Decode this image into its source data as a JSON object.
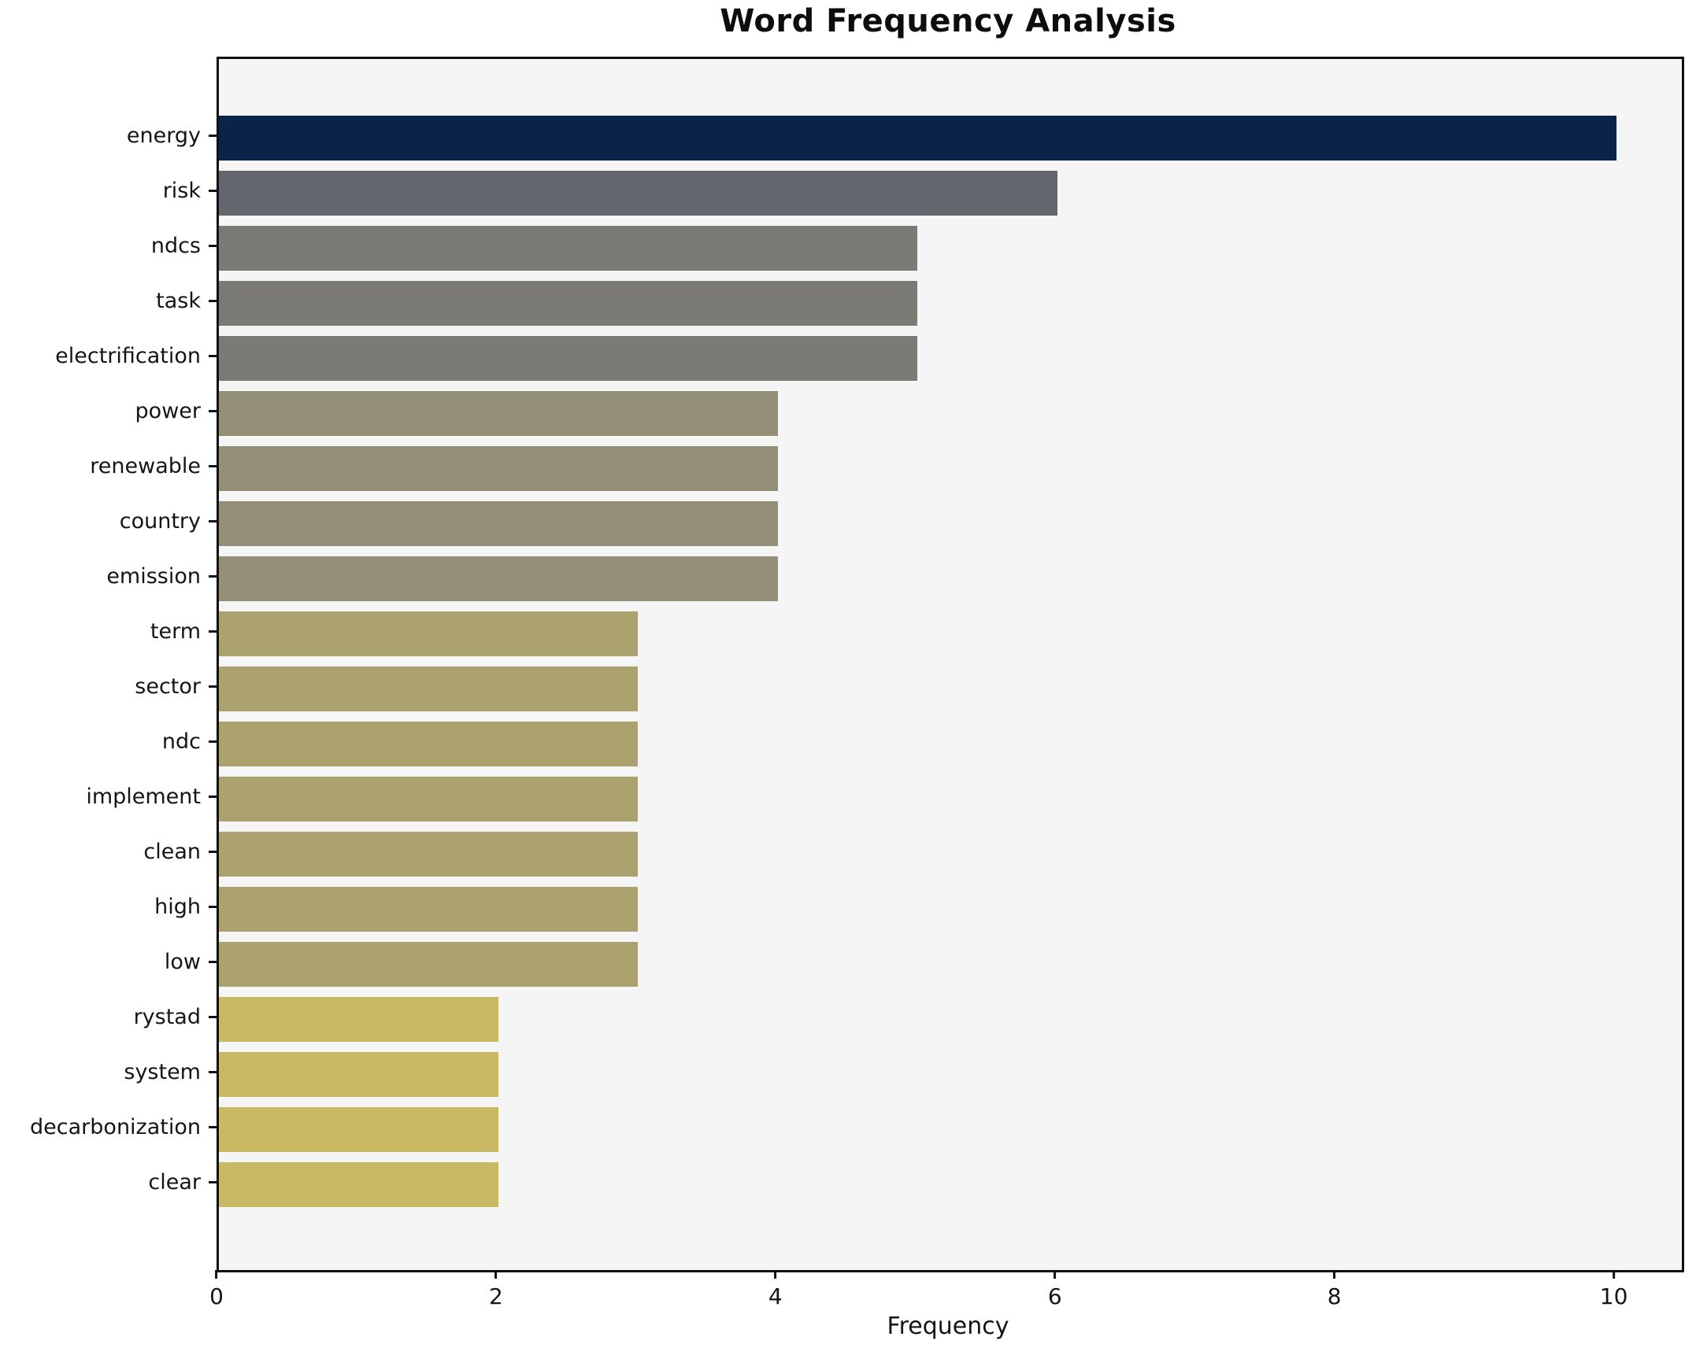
{
  "chart_data": {
    "type": "bar",
    "orientation": "horizontal",
    "title": "Word Frequency Analysis",
    "xlabel": "Frequency",
    "ylabel": "",
    "grid": false,
    "legend": "none",
    "plot_background": "#f5f5f6",
    "colormap_hint": "cividis (color mapped to frequency)",
    "xlim": [
      0,
      10.47
    ],
    "x_ticks": [
      0,
      2,
      4,
      6,
      8,
      10
    ],
    "categories": [
      "energy",
      "risk",
      "ndcs",
      "task",
      "electrification",
      "power",
      "renewable",
      "country",
      "emission",
      "term",
      "sector",
      "ndc",
      "implement",
      "clean",
      "high",
      "low",
      "rystad",
      "system",
      "decarbonization",
      "clear"
    ],
    "values": [
      10,
      6,
      5,
      5,
      5,
      4,
      4,
      4,
      4,
      3,
      3,
      3,
      3,
      3,
      3,
      3,
      2,
      2,
      2,
      2
    ],
    "bar_colors": [
      "#0a2449",
      "#64666d",
      "#7b7a74",
      "#7b7a74",
      "#7b7a74",
      "#949078",
      "#949078",
      "#949078",
      "#949078",
      "#aca26f",
      "#aca26f",
      "#aca26f",
      "#aca26f",
      "#aca26f",
      "#aca26f",
      "#aca26f",
      "#c9b964",
      "#c9b964",
      "#c9b964",
      "#c9b964"
    ]
  }
}
